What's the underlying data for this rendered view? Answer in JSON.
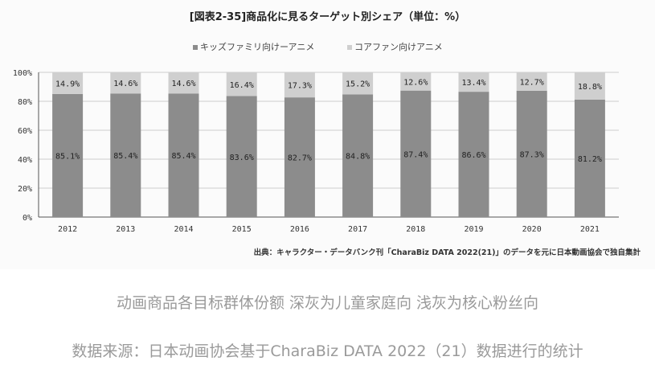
{
  "chart_data": {
    "type": "bar",
    "stacked": true,
    "title": "[図表2-35]商品化に見るターゲット別シェア（単位：%）",
    "categories": [
      "2012",
      "2013",
      "2014",
      "2015",
      "2016",
      "2017",
      "2018",
      "2019",
      "2020",
      "2021"
    ],
    "series": [
      {
        "name": "キッズファミリ向けーアニメ",
        "color": "#8c8c8c",
        "values": [
          85.1,
          85.4,
          85.4,
          83.6,
          82.7,
          84.8,
          87.4,
          86.6,
          87.3,
          81.2
        ]
      },
      {
        "name": "コアファン向けアニメ",
        "color": "#cfcfcf",
        "values": [
          14.9,
          14.6,
          14.6,
          16.4,
          17.3,
          15.2,
          12.6,
          13.4,
          12.7,
          18.8
        ]
      }
    ],
    "yticks": [
      "0%",
      "20%",
      "40%",
      "60%",
      "80%",
      "100%"
    ],
    "ylim": [
      0,
      100
    ],
    "legend_position": "top",
    "source": "出典：キャラクター・データバンク刊「CharaBiz DATA 2022(21)」のデータを元に日本動画協会で独自集計"
  },
  "captions": {
    "line1": "动画商品各目标群体份额 深灰为儿童家庭向 浅灰为核心粉丝向",
    "line2": "数据来源：日本动画协会基于CharaBiz DATA 2022（21）数据进行的统计"
  }
}
